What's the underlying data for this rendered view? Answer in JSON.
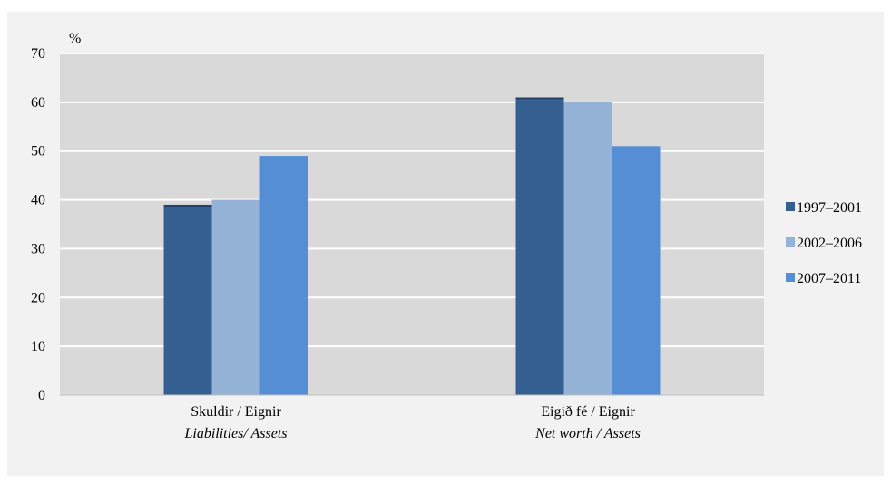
{
  "chart_data": {
    "type": "bar",
    "ylabel": "%",
    "ylim": [
      0,
      70
    ],
    "yticks": [
      0,
      10,
      20,
      30,
      40,
      50,
      60,
      70
    ],
    "grid": true,
    "legend_position": "right",
    "categories": [
      {
        "label": "Skuldir / Eignir",
        "label_en": "Liabilities/ Assets"
      },
      {
        "label": "Eigið fé / Eignir",
        "label_en": "Net worth / Assets"
      }
    ],
    "series": [
      {
        "name": "1997–2001",
        "color": "#355f91",
        "values": [
          39,
          61
        ]
      },
      {
        "name": "2002–2006",
        "color": "#95b3d7",
        "values": [
          40,
          60
        ]
      },
      {
        "name": "2007–2011",
        "color": "#558ed5",
        "values": [
          49,
          51
        ]
      }
    ]
  }
}
